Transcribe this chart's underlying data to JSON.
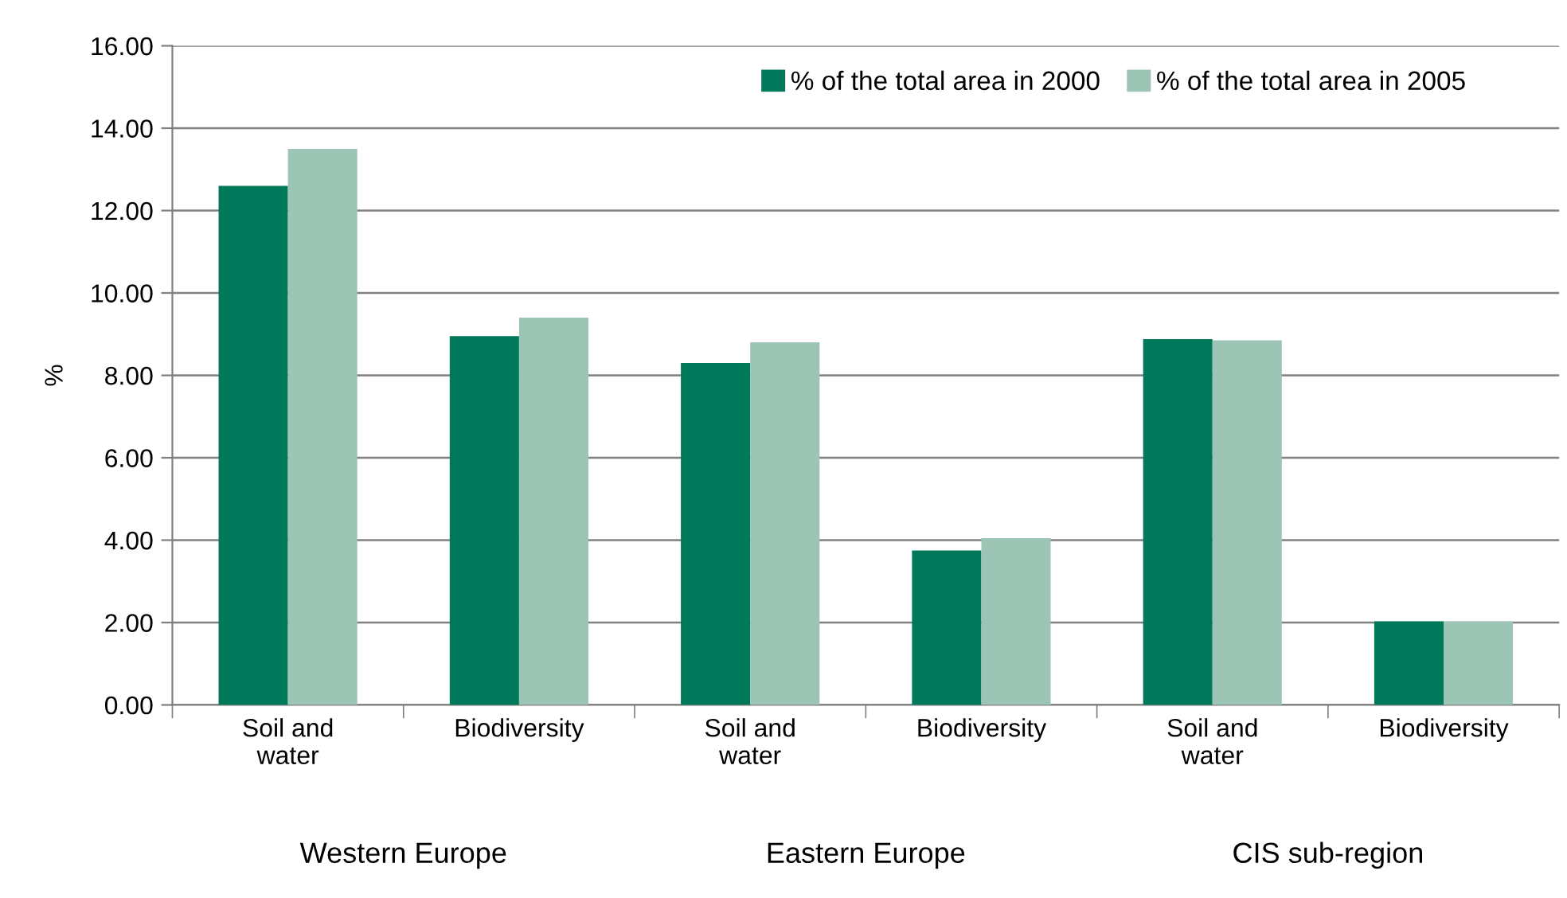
{
  "chart_data": {
    "type": "bar",
    "ylabel": "%",
    "categories": [
      "Soil and water",
      "Biodiversity",
      "Soil and water",
      "Biodiversity",
      "Soil and water",
      "Biodiversity"
    ],
    "series": [
      {
        "name": "% of the total area in 2000",
        "color": "#00785a",
        "values": [
          12.6,
          8.95,
          8.3,
          3.75,
          8.88,
          2.03
        ]
      },
      {
        "name": "% of the total area in 2005",
        "color": "#9cc5b5",
        "values": [
          13.5,
          9.4,
          8.8,
          4.05,
          8.85,
          2.03
        ]
      }
    ],
    "annotations": [
      "Western Europe",
      "Eastern Europe",
      "CIS sub-region"
    ],
    "ylim": [
      0,
      16
    ],
    "yticks": [
      {
        "value": 0,
        "label": "0.00"
      },
      {
        "value": 2,
        "label": "2.00"
      },
      {
        "value": 4,
        "label": "4.00"
      },
      {
        "value": 6,
        "label": "6.00"
      },
      {
        "value": 8,
        "label": "8.00"
      },
      {
        "value": 10,
        "label": "10.00"
      },
      {
        "value": 12,
        "label": "12.00"
      },
      {
        "value": 14,
        "label": "14.00"
      },
      {
        "value": 16,
        "label": "16.00"
      }
    ],
    "grid": "y",
    "legend": "top right"
  }
}
